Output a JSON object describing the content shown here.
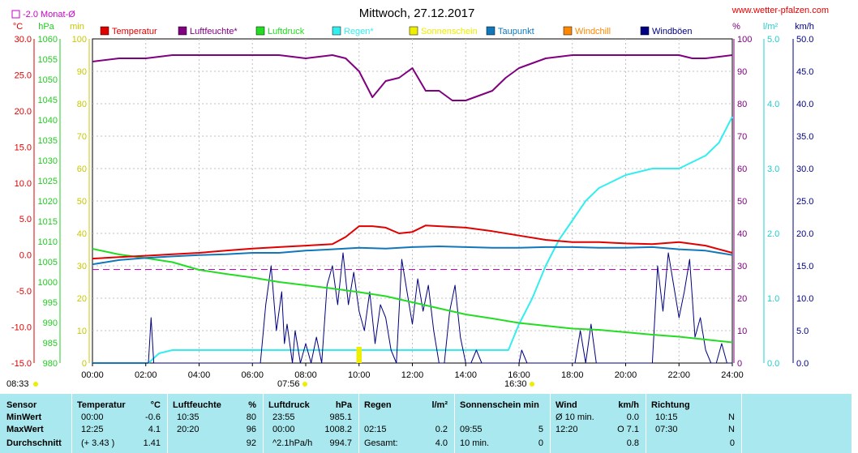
{
  "header": {
    "title": "Mittwoch, 27.12.2017",
    "site": "www.wetter-pfalzen.com",
    "month_avg": "-2.0 Monat-Ø"
  },
  "legend": [
    {
      "label": "Temperatur",
      "color": "#e00000"
    },
    {
      "label": "Luftfeuchte*",
      "color": "#800080"
    },
    {
      "label": "Luftdruck",
      "color": "#22dd22"
    },
    {
      "label": "Regen*",
      "color": "#33eeee"
    },
    {
      "label": "Sonnenschein",
      "color": "#eeee00"
    },
    {
      "label": "Taupunkt",
      "color": "#1177bb"
    },
    {
      "label": "Windchill",
      "color": "#ff8800"
    },
    {
      "label": "Windböen",
      "color": "#000080"
    }
  ],
  "axes": {
    "left_units": [
      "°C",
      "hPa",
      "min"
    ],
    "right_units": [
      "%",
      "l/m²",
      "km/h"
    ],
    "temp_ticks": [
      "30.0",
      "25.0",
      "20.0",
      "15.0",
      "10.0",
      "5.0",
      "0.0",
      "-5.0",
      "-10.0",
      "-15.0"
    ],
    "hpa_ticks": [
      "1060",
      "1055",
      "1050",
      "1045",
      "1040",
      "1035",
      "1030",
      "1025",
      "1020",
      "1015",
      "1010",
      "1005",
      "1000",
      "995",
      "990",
      "985",
      "980"
    ],
    "min_ticks": [
      "100",
      "90",
      "80",
      "70",
      "60",
      "50",
      "40",
      "30",
      "20",
      "10",
      "0"
    ],
    "pct_ticks": [
      "100",
      "90",
      "80",
      "70",
      "60",
      "50",
      "40",
      "30",
      "20",
      "10",
      "0"
    ],
    "rain_ticks": [
      "5.0",
      "4.0",
      "3.0",
      "2.0",
      "1.0",
      "0.0"
    ],
    "kmh_ticks": [
      "50.0",
      "45.0",
      "40.0",
      "35.0",
      "30.0",
      "25.0",
      "20.0",
      "15.0",
      "10.0",
      "5.0",
      "0.0"
    ],
    "x_ticks": [
      "00:00",
      "02:00",
      "04:00",
      "06:00",
      "08:00",
      "10:00",
      "12:00",
      "14:00",
      "16:00",
      "18:00",
      "20:00",
      "22:00",
      "24:00"
    ]
  },
  "sun_events": {
    "sunrise": "08:33",
    "sun_start": "07:56",
    "sunset": "16:30"
  },
  "chart_data": {
    "type": "line",
    "x_unit": "hours",
    "xlim": [
      0,
      24
    ],
    "grid": true,
    "legend_position": "top",
    "series": [
      {
        "name": "Temperatur",
        "axis": "°C",
        "ylim": [
          -15,
          30
        ],
        "color": "#e00000",
        "x": [
          0,
          1,
          2,
          3,
          4,
          5,
          6,
          7,
          8,
          9,
          9.5,
          10,
          10.5,
          11,
          11.5,
          12,
          12.5,
          13,
          14,
          15,
          16,
          17,
          18,
          19,
          20,
          21,
          22,
          23,
          24
        ],
        "y": [
          -0.5,
          -0.3,
          -0.1,
          0.1,
          0.3,
          0.6,
          0.9,
          1.1,
          1.3,
          1.5,
          2.5,
          4.0,
          4.0,
          3.8,
          3.0,
          3.2,
          4.1,
          4.0,
          3.8,
          3.3,
          2.7,
          2.1,
          1.8,
          1.8,
          1.6,
          1.5,
          1.8,
          1.3,
          0.3
        ]
      },
      {
        "name": "Taupunkt",
        "axis": "°C",
        "ylim": [
          -15,
          30
        ],
        "color": "#1177bb",
        "x": [
          0,
          1,
          2,
          3,
          4,
          5,
          6,
          7,
          8,
          9,
          10,
          11,
          12,
          13,
          14,
          15,
          16,
          17,
          18,
          19,
          20,
          21,
          22,
          23,
          24
        ],
        "y": [
          -1.3,
          -0.7,
          -0.4,
          -0.2,
          0.0,
          0.1,
          0.3,
          0.3,
          0.6,
          0.8,
          1.0,
          0.9,
          1.1,
          1.2,
          1.1,
          1.0,
          1.0,
          1.1,
          1.1,
          1.0,
          1.0,
          1.1,
          0.8,
          0.6,
          0.0
        ]
      },
      {
        "name": "Luftfeuchte*",
        "axis": "%",
        "ylim": [
          0,
          100
        ],
        "color": "#800080",
        "x": [
          0,
          1,
          2,
          3,
          4,
          5,
          6,
          7,
          8,
          9,
          9.5,
          10,
          10.5,
          11,
          11.5,
          12,
          12.5,
          13,
          13.5,
          14,
          15,
          15.5,
          16,
          17,
          18,
          19,
          20,
          21,
          22,
          22.5,
          23,
          24
        ],
        "y": [
          93,
          94,
          94,
          95,
          95,
          95,
          95,
          95,
          94,
          95,
          94,
          90,
          82,
          87,
          88,
          91,
          84,
          84,
          81,
          81,
          84,
          88,
          91,
          94,
          95,
          95,
          95,
          95,
          95,
          94,
          94,
          95
        ]
      },
      {
        "name": "Luftdruck",
        "axis": "hPa",
        "ylim": [
          980,
          1060
        ],
        "color": "#22dd22",
        "x": [
          0,
          1,
          2,
          3,
          4,
          5,
          6,
          7,
          8,
          9,
          10,
          11,
          12,
          13,
          14,
          15,
          16,
          17,
          18,
          19,
          20,
          21,
          22,
          23,
          24
        ],
        "y": [
          1008.2,
          1006.8,
          1005.9,
          1004.9,
          1003.0,
          1002.0,
          1001.1,
          1000.0,
          999.2,
          998.4,
          997.5,
          996.5,
          995.0,
          993.5,
          992.0,
          991.0,
          989.9,
          989.2,
          988.5,
          988.2,
          987.6,
          987.0,
          986.5,
          985.8,
          985.1
        ]
      },
      {
        "name": "Regen*",
        "axis": "l/m²",
        "ylim": [
          0,
          5
        ],
        "color": "#33eeee",
        "x": [
          0,
          2.1,
          2.5,
          3,
          8,
          9,
          10,
          12,
          15,
          15.6,
          16,
          16.5,
          17,
          17.5,
          18,
          18.5,
          19,
          19.5,
          20,
          20.5,
          21,
          22,
          22.5,
          23,
          23.5,
          24
        ],
        "y": [
          0,
          0,
          0.15,
          0.2,
          0.2,
          0.2,
          0.2,
          0.2,
          0.2,
          0.2,
          0.6,
          1.0,
          1.5,
          1.9,
          2.2,
          2.5,
          2.7,
          2.8,
          2.9,
          2.95,
          3.0,
          3.0,
          3.1,
          3.2,
          3.4,
          3.8
        ]
      },
      {
        "name": "Windböen",
        "axis": "km/h",
        "ylim": [
          0,
          50
        ],
        "color": "#000080",
        "x": [
          0,
          2.1,
          2.2,
          2.3,
          6.3,
          6.5,
          6.7,
          6.9,
          7.1,
          7.2,
          7.3,
          7.5,
          7.6,
          7.8,
          8.0,
          8.2,
          8.4,
          8.6,
          8.8,
          9.0,
          9.2,
          9.4,
          9.6,
          9.8,
          10.0,
          10.2,
          10.4,
          10.6,
          10.8,
          11.0,
          11.2,
          11.4,
          11.6,
          11.8,
          12.0,
          12.2,
          12.4,
          12.6,
          12.8,
          13.0,
          13.2,
          13.4,
          13.6,
          13.8,
          14.0,
          14.2,
          14.4,
          14.6,
          14.8,
          15.0,
          16.0,
          16.1,
          16.3,
          18.1,
          18.3,
          18.5,
          18.7,
          18.9,
          21.0,
          21.2,
          21.4,
          21.6,
          21.8,
          22.0,
          22.2,
          22.4,
          22.6,
          22.8,
          23.0,
          23.2,
          23.4,
          23.6,
          23.8,
          24.0
        ],
        "y": [
          0,
          0,
          7,
          0,
          0,
          9,
          15,
          5,
          11,
          3,
          6,
          0,
          5,
          0,
          3,
          0,
          4,
          0,
          12,
          15,
          9,
          17,
          9,
          14,
          8,
          5,
          11,
          3,
          9,
          7,
          2,
          0,
          16,
          11,
          6,
          13,
          8,
          12,
          5,
          0,
          0,
          8,
          12,
          4,
          0,
          0,
          2,
          0,
          0,
          0,
          0,
          2,
          0,
          0,
          5,
          0,
          6,
          0,
          0,
          15,
          8,
          17,
          12,
          7,
          11,
          16,
          4,
          7,
          2,
          0,
          0,
          3,
          0,
          0
        ]
      }
    ]
  },
  "stats": {
    "header": {
      "sensor": "Sensor",
      "temp": "Temperatur",
      "temp_unit": "°C",
      "hum": "Luftfeuchte",
      "hum_unit": "%",
      "press": "Luftdruck",
      "press_unit": "hPa",
      "rain": "Regen",
      "rain_unit": "l/m²",
      "sun": "Sonnenschein min",
      "wind": "Wind",
      "wind_unit": "km/h",
      "dir": "Richtung"
    },
    "rows": [
      {
        "label": "MinWert",
        "temp_time": "00:00",
        "temp_val": "-0.6",
        "hum_time": "10:35",
        "hum_val": "80",
        "press_time": "23:55",
        "press_val": "985.1",
        "rain_time": "",
        "rain_val": "",
        "sun_time": "",
        "sun_val": "",
        "wind_time": "Ø 10 min.",
        "wind_val": "0.0",
        "dir_time": "10:15",
        "dir_val": "N"
      },
      {
        "label": "MaxWert",
        "temp_time": "12:25",
        "temp_val": "4.1",
        "hum_time": "20:20",
        "hum_val": "96",
        "press_time": "00:00",
        "press_val": "1008.2",
        "rain_time": "02:15",
        "rain_val": "0.2",
        "sun_time": "09:55",
        "sun_val": "5",
        "wind_time": "12:20",
        "wind_val": "O 7.1",
        "dir_time": "07:30",
        "dir_val": "N"
      },
      {
        "label": "Durchschnitt",
        "temp_time": "(+ 3.43 )",
        "temp_val": "1.41",
        "hum_time": "",
        "hum_val": "92",
        "press_time": "^2.1hPa/h",
        "press_val": "994.7",
        "rain_time": "Gesamt:",
        "rain_val": "4.0",
        "sun_time": "10 min.",
        "sun_val": "0",
        "wind_time": "",
        "wind_val": "0.8",
        "dir_time": "",
        "dir_val": "0"
      }
    ]
  }
}
